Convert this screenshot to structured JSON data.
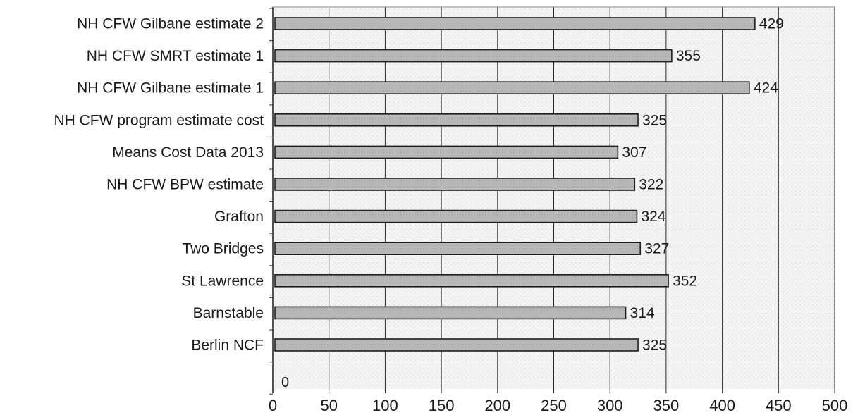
{
  "chart_data": {
    "type": "bar",
    "orientation": "horizontal",
    "title": "",
    "xlabel": "",
    "ylabel": "",
    "xlim": [
      0,
      500
    ],
    "x_ticks": [
      0,
      50,
      100,
      150,
      200,
      250,
      300,
      350,
      400,
      450,
      500
    ],
    "grid": true,
    "legend": "none",
    "categories": [
      "NH CFW Gilbane estimate 2",
      "NH CFW SMRT estimate 1",
      "NH CFW Gilbane estimate 1",
      "NH CFW program estimate cost",
      "Means Cost Data 2013",
      "NH CFW BPW estimate",
      "Grafton",
      "Two Bridges",
      "St Lawrence",
      "Barnstable",
      "Berlin NCF",
      ""
    ],
    "values": [
      429,
      355,
      424,
      325,
      307,
      322,
      324,
      327,
      352,
      314,
      325,
      0
    ],
    "value_labels": [
      "429",
      "355",
      "424",
      "325",
      "307",
      "322",
      "324",
      "327",
      "352",
      "314",
      "325",
      "0"
    ],
    "colors": {
      "bar_fill": "#b8b8b8",
      "bar_stroke": "#1e1e1e",
      "grid": "#2a2a2a",
      "plot_background": "#f3f3f3"
    }
  }
}
